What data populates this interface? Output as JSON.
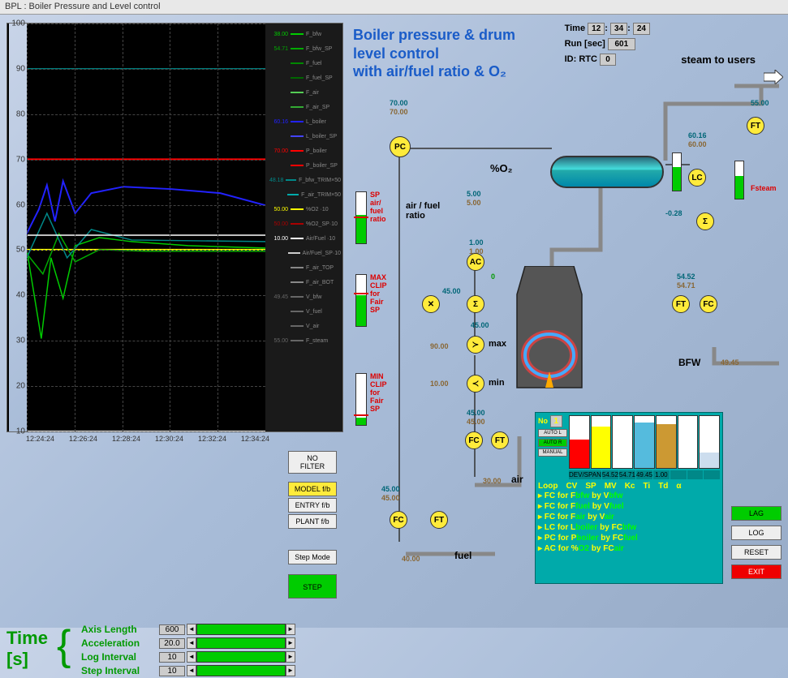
{
  "window_title": "BPL : Boiler Pressure and Level control",
  "main_title_l1": "Boiler pressure & drum",
  "main_title_l2": "level control",
  "main_title_l3": "with air/fuel ratio & O₂",
  "time": {
    "label": "Time",
    "h": "12",
    "m": "34",
    "s": "24"
  },
  "run": {
    "label": "Run [sec]",
    "val": "601"
  },
  "id": {
    "label": "ID: RTC",
    "val": "0"
  },
  "steam_label": "steam to users",
  "chart": {
    "ymin": 10,
    "ymax": 100,
    "ytick": 10,
    "xticks": [
      "12:24:24",
      "12:26:24",
      "12:28:24",
      "12:30:24",
      "12:32:24",
      "12:34:24"
    ],
    "legend": [
      {
        "v": "38.00",
        "c": "#0c0",
        "n": "F_bfw"
      },
      {
        "v": "54.71",
        "c": "#0a0",
        "n": "F_bfw_SP"
      },
      {
        "v": "",
        "c": "#080",
        "n": "F_fuel"
      },
      {
        "v": "",
        "c": "#060",
        "n": "F_fuel_SP"
      },
      {
        "v": "",
        "c": "#5c5",
        "n": "F_air"
      },
      {
        "v": "",
        "c": "#3a3",
        "n": "F_air_SP"
      },
      {
        "v": "60.16",
        "c": "#22f",
        "n": "L_boiler"
      },
      {
        "v": "",
        "c": "#44f",
        "n": "L_boiler_SP"
      },
      {
        "v": "70.00",
        "c": "#f00",
        "n": "P_boiler"
      },
      {
        "v": "",
        "c": "#f00",
        "n": "P_boiler_SP"
      },
      {
        "v": "48.18",
        "c": "#088",
        "n": "F_bfw_TRIM×50"
      },
      {
        "v": "",
        "c": "#0aa",
        "n": "F_air_TRIM×50"
      },
      {
        "v": "50.00",
        "c": "#ff0",
        "n": "%O2 ·10"
      },
      {
        "v": "50.00",
        "c": "#a00",
        "n": "%O2_SP·10"
      },
      {
        "v": "10.00",
        "c": "#fff",
        "n": "Air/Fuel ·10"
      },
      {
        "v": "",
        "c": "#ccc",
        "n": "Air/Fuel_SP·10"
      },
      {
        "v": "",
        "c": "#888",
        "n": "F_air_TOP"
      },
      {
        "v": "",
        "c": "#888",
        "n": "F_air_BOT"
      },
      {
        "v": "49.45",
        "c": "#666",
        "n": "V_bfw"
      },
      {
        "v": "",
        "c": "#666",
        "n": "V_fuel"
      },
      {
        "v": "",
        "c": "#666",
        "n": "V_air"
      },
      {
        "v": "55.00",
        "c": "#666",
        "n": "F_steam"
      }
    ]
  },
  "spbars": {
    "sp1": {
      "label": "SP\nair/\nfuel\nratio",
      "fill": 55,
      "mark": 50
    },
    "sp2": {
      "label": "MAX\nCLIP\nfor\nFair\nSP",
      "fill": 60,
      "mark": 62
    },
    "sp3": {
      "label": "MIN\nCLIP\nfor\nFair\nSP",
      "fill": 15,
      "mark": 18
    }
  },
  "nodes": {
    "pc": {
      "txt": "PC",
      "t1": "70.00",
      "t2": "70.00"
    },
    "ac": {
      "txt": "AC",
      "t1": "5.00",
      "t2": "5.00",
      "t3": "1.00",
      "t4": "1.00",
      "t5": "0"
    },
    "mult": {
      "txt": "✕",
      "t1": "45.00"
    },
    "sum1": {
      "txt": "Σ"
    },
    "max": {
      "txt": "≻",
      "lbl": "max",
      "t1": "45.00",
      "t2": "90.00"
    },
    "min": {
      "txt": "≺",
      "lbl": "min",
      "t1": "10.00"
    },
    "fc_air": {
      "txt": "FC",
      "t1": "45.00",
      "t2": "45.00"
    },
    "ft_air": {
      "txt": "FT"
    },
    "fc_fuel": {
      "txt": "FC",
      "t1": "45.00",
      "t2": "45.00",
      "t3": "40.00"
    },
    "ft_fuel": {
      "txt": "FT"
    },
    "ft_steam": {
      "txt": "FT",
      "t1": "55.00"
    },
    "lc": {
      "txt": "LC",
      "t1": "60.16",
      "t2": "60.00",
      "t3": "-0.28"
    },
    "sum2": {
      "txt": "Σ"
    },
    "ft_bfw": {
      "txt": "FT",
      "t1": "54.52"
    },
    "fc_bfw": {
      "txt": "FC",
      "t1": "54.71",
      "t2": "49.45"
    }
  },
  "labels": {
    "o2": "%O₂",
    "airfuel": "air / fuel\nratio",
    "air": "air",
    "fuel": "fuel",
    "bfw": "BFW",
    "fsteam": "Fsteam",
    "airval": "30.00"
  },
  "buttons": {
    "nofilter": "NO FILTER",
    "modelfb": "MODEL f/b",
    "entryfb": "ENTRY f/b",
    "plantfb": "PLANT f/b",
    "stepmode": "Step Mode",
    "step": "STEP",
    "lag": "LAG",
    "log": "LOG",
    "reset": "RESET",
    "exit": "EXIT"
  },
  "timeset": {
    "title": "Time\n[s]",
    "rows": [
      {
        "l": "Axis Length",
        "v": "600"
      },
      {
        "l": "Acceleration",
        "v": "20.0"
      },
      {
        "l": "Log Interval",
        "v": "10"
      },
      {
        "l": "Step Interval",
        "v": "10"
      }
    ]
  },
  "tuning": {
    "no": "No",
    "noval": "1",
    "btns": [
      "AUTO L",
      "AUTO R",
      "MANUAL"
    ],
    "bars": [
      {
        "c": "#f00",
        "h": 55
      },
      {
        "c": "#ff0",
        "h": 80
      },
      {
        "c": "#fff",
        "h": 42
      },
      {
        "c": "#5bd",
        "h": 88
      },
      {
        "c": "#c93",
        "h": 85
      },
      {
        "c": "#fff",
        "h": 20
      },
      {
        "c": "#cde",
        "h": 30
      }
    ],
    "vals": [
      "DEV/SPAN",
      "54.52",
      "54.71",
      "49.45",
      "1.00",
      "",
      "",
      ""
    ],
    "hdr": [
      "Loop",
      "CV",
      "SP",
      "MV",
      "Kc",
      "Ti",
      "Td",
      "α"
    ],
    "rows": [
      {
        "p": "FC for F",
        "cv": "bfw",
        "m": "by V",
        "mv": "bfw"
      },
      {
        "p": "FC for F",
        "cv": "fuel",
        "m": "by V",
        "mv": "fuel"
      },
      {
        "p": "FC for F",
        "cv": "air",
        "m": "by V",
        "mv": "air"
      },
      {
        "p": "LC for L",
        "cv": "boiler",
        "m": "by FC",
        "mv": "bfw"
      },
      {
        "p": "PC for P",
        "cv": "boiler",
        "m": "by FC",
        "mv": "fuel"
      },
      {
        "p": "AC for %",
        "cv": "O2",
        "m": "by FC",
        "mv": "air"
      }
    ]
  }
}
